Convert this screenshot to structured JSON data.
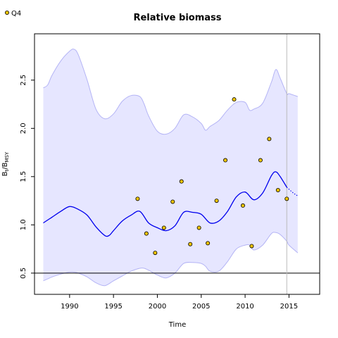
{
  "chart_data": {
    "type": "line",
    "title": "Relative biomass",
    "xlabel": "Time",
    "ylabel": {
      "main": "B",
      "sub1": "t",
      "slash": "/B",
      "sub2": "MSY"
    },
    "xlim": [
      1986,
      2018.5
    ],
    "ylim": [
      0.28,
      2.98
    ],
    "xticks": [
      1990,
      1995,
      2000,
      2005,
      2010,
      2015
    ],
    "yticks": [
      "0.5",
      "1.0",
      "1.5",
      "2.0",
      "2.5"
    ],
    "grid": false,
    "legend": {
      "position": "top-left",
      "entries": [
        "Q4"
      ]
    },
    "colors": {
      "estimate": "#0000ee",
      "band_fill": "#e6e6ff",
      "band_edge": "#b4b4f5",
      "points_fill": "#f0c400",
      "reference": "#000000",
      "vline": "#bbbbbb"
    },
    "reference_line": 0.5,
    "vline_x": 2014.75,
    "series": [
      {
        "name": "Q4",
        "kind": "observations",
        "x": [
          1997.75,
          1998.75,
          1999.75,
          2000.75,
          2001.75,
          2002.75,
          2003.75,
          2004.75,
          2005.75,
          2006.75,
          2007.75,
          2008.75,
          2009.75,
          2010.75,
          2011.75,
          2012.75,
          2013.75,
          2014.75
        ],
        "y": [
          1.27,
          0.91,
          0.71,
          0.97,
          1.24,
          1.45,
          0.8,
          0.97,
          0.81,
          1.25,
          1.67,
          2.3,
          1.2,
          0.78,
          1.67,
          1.89,
          1.36,
          1.27
        ]
      },
      {
        "kind": "estimate",
        "x": [
          1987,
          1988,
          1989,
          1990,
          1991,
          1992,
          1993,
          1994,
          1994.5,
          1995,
          1996,
          1997,
          1998,
          1999,
          2000,
          2001,
          2002,
          2003,
          2004,
          2005,
          2006,
          2007,
          2008,
          2009,
          2010,
          2011,
          2012,
          2013,
          2013.5,
          2014,
          2014.75
        ],
        "y": [
          1.02,
          1.08,
          1.14,
          1.19,
          1.16,
          1.1,
          0.98,
          0.89,
          0.89,
          0.94,
          1.04,
          1.1,
          1.14,
          1.02,
          0.97,
          0.94,
          0.99,
          1.13,
          1.13,
          1.11,
          1.02,
          1.04,
          1.14,
          1.29,
          1.34,
          1.26,
          1.33,
          1.51,
          1.55,
          1.5,
          1.39
        ]
      },
      {
        "kind": "forecast",
        "x": [
          2014.75,
          2015.5,
          2016
        ],
        "y": [
          1.39,
          1.33,
          1.3
        ]
      },
      {
        "kind": "confidence_band",
        "x": [
          1987,
          1987.5,
          1988,
          1989,
          1990,
          1990.5,
          1991,
          1992,
          1993,
          1994,
          1995,
          1996,
          1997,
          1998,
          1998.5,
          1999,
          2000,
          2001,
          2002,
          2003,
          2004,
          2005,
          2005.5,
          2006,
          2007,
          2008,
          2009,
          2010,
          2010.5,
          2011,
          2012,
          2013,
          2013.5,
          2014,
          2014.75,
          2015,
          2016
        ],
        "upper": [
          2.42,
          2.45,
          2.55,
          2.7,
          2.8,
          2.82,
          2.76,
          2.5,
          2.2,
          2.1,
          2.15,
          2.28,
          2.34,
          2.33,
          2.25,
          2.13,
          1.97,
          1.94,
          2.0,
          2.14,
          2.12,
          2.05,
          1.98,
          2.02,
          2.08,
          2.19,
          2.27,
          2.27,
          2.19,
          2.2,
          2.26,
          2.48,
          2.61,
          2.52,
          2.36,
          2.36,
          2.33
        ],
        "lower": [
          0.42,
          0.44,
          0.46,
          0.49,
          0.51,
          0.51,
          0.5,
          0.46,
          0.4,
          0.37,
          0.42,
          0.47,
          0.52,
          0.55,
          0.55,
          0.53,
          0.48,
          0.45,
          0.5,
          0.6,
          0.61,
          0.6,
          0.57,
          0.52,
          0.52,
          0.62,
          0.75,
          0.79,
          0.79,
          0.74,
          0.79,
          0.91,
          0.92,
          0.9,
          0.83,
          0.79,
          0.71
        ]
      }
    ]
  }
}
